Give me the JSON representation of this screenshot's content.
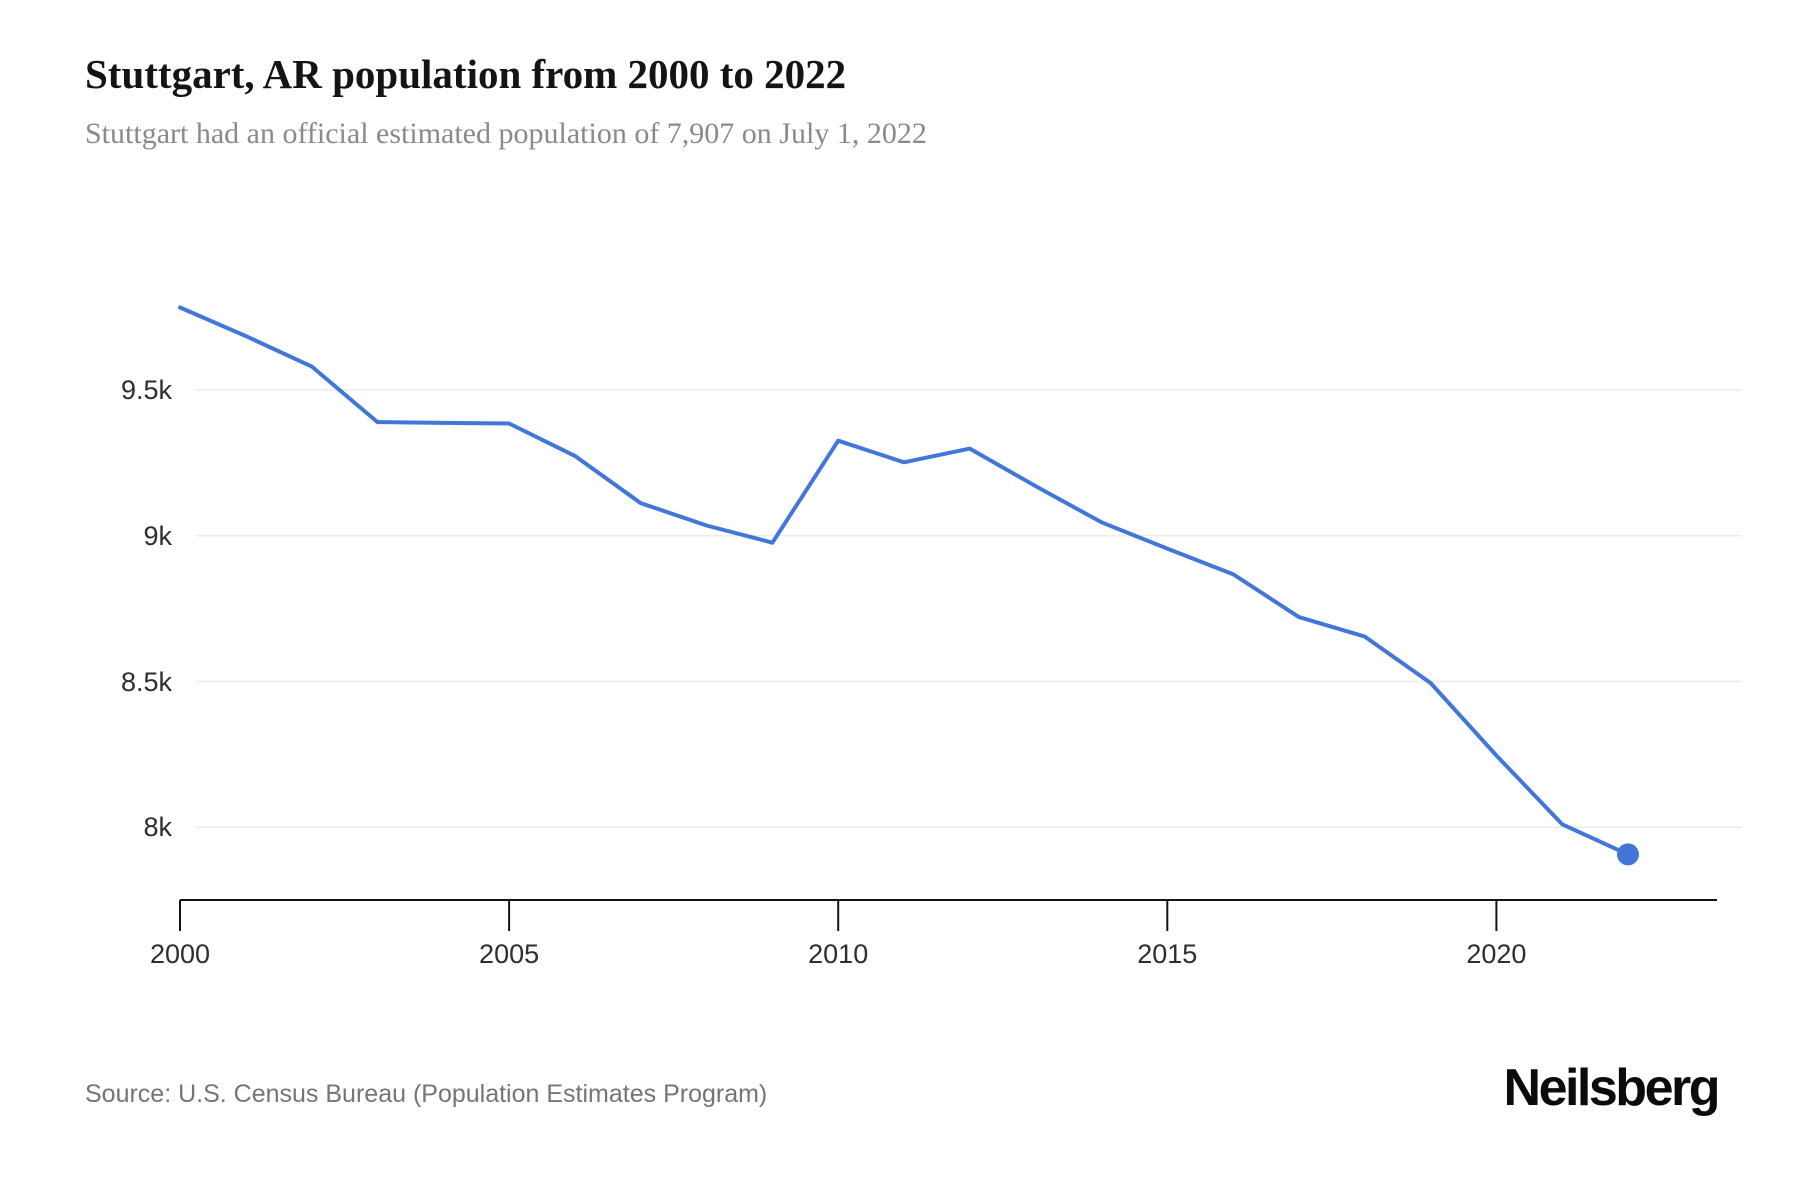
{
  "header": {
    "title": "Stuttgart, AR population from 2000 to 2022",
    "subtitle": "Stuttgart had an official estimated population of 7,907 on July 1, 2022"
  },
  "chart_data": {
    "type": "line",
    "title": "Stuttgart, AR population from 2000 to 2022",
    "xlabel": "",
    "ylabel": "",
    "x": [
      2000,
      2001,
      2002,
      2003,
      2004,
      2005,
      2006,
      2007,
      2008,
      2009,
      2010,
      2011,
      2012,
      2013,
      2014,
      2015,
      2016,
      2017,
      2018,
      2019,
      2020,
      2021,
      2022
    ],
    "series": [
      {
        "name": "Population",
        "values": [
          9783,
          9685,
          9581,
          9390,
          9387,
          9385,
          9274,
          9112,
          9035,
          8976,
          9326,
          9252,
          9299,
          9170,
          9046,
          8956,
          8868,
          8721,
          8654,
          8495,
          8246,
          8010,
          7907
        ]
      }
    ],
    "latest_point": {
      "x": 2022,
      "value": 7907
    },
    "yticks": [
      {
        "value": 9500,
        "label": "9.5k"
      },
      {
        "value": 9000,
        "label": "9k"
      },
      {
        "value": 8500,
        "label": "8.5k"
      },
      {
        "value": 8000,
        "label": "8k"
      }
    ],
    "xticks": [
      {
        "value": 2000,
        "label": "2000"
      },
      {
        "value": 2005,
        "label": "2005"
      },
      {
        "value": 2010,
        "label": "2010"
      },
      {
        "value": 2015,
        "label": "2015"
      },
      {
        "value": 2020,
        "label": "2020"
      }
    ],
    "xlim": [
      2000,
      2023.3
    ],
    "ylim": [
      7750,
      9950
    ],
    "grid": "horizontal-only",
    "legend": "none",
    "colors": {
      "line": "#4277d9",
      "marker": "#4277d9",
      "gridline": "#ececec",
      "axis": "#141414",
      "tick_label": "#2e2e2e"
    }
  },
  "footer": {
    "source": "Source: U.S. Census Bureau (Population Estimates Program)",
    "logo_text": "Neilsberg"
  }
}
